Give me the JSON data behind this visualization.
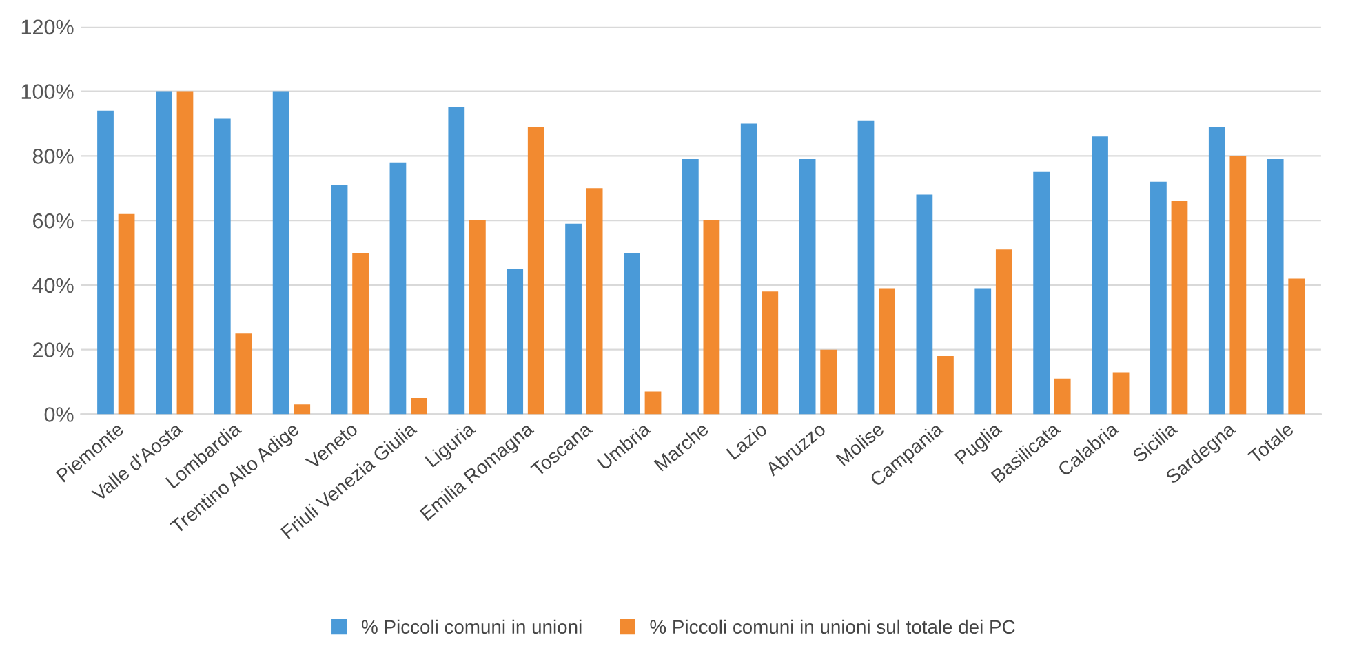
{
  "chart_data": {
    "type": "bar",
    "categories": [
      "Piemonte",
      "Valle d'Aosta",
      "Lombardia",
      "Trentino Alto Adige",
      "Veneto",
      "Friuli Venezia Giulia",
      "Liguria",
      "Emilia Romagna",
      "Toscana",
      "Umbria",
      "Marche",
      "Lazio",
      "Abruzzo",
      "Molise",
      "Campania",
      "Puglia",
      "Basilicata",
      "Calabria",
      "Sicilia",
      "Sardegna",
      "Totale"
    ],
    "series": [
      {
        "name": "% Piccoli comuni in unioni",
        "color": "#4a9ad8",
        "values": [
          94,
          100,
          91.5,
          100,
          71,
          78,
          95,
          45,
          59,
          50,
          79,
          90,
          79,
          91,
          68,
          39,
          75,
          86,
          72,
          89,
          79
        ]
      },
      {
        "name": "% Piccoli comuni in unioni sul totale dei PC",
        "color": "#f28a30",
        "values": [
          62,
          100,
          25,
          3,
          50,
          5,
          60,
          89,
          70,
          7,
          60,
          38,
          20,
          39,
          18,
          51,
          11,
          13,
          66,
          80,
          42
        ]
      }
    ],
    "ylim": [
      0,
      120
    ],
    "yticks": [
      {
        "value": 0,
        "label": "0%"
      },
      {
        "value": 20,
        "label": "20%"
      },
      {
        "value": 40,
        "label": "40%"
      },
      {
        "value": 60,
        "label": "60%"
      },
      {
        "value": 80,
        "label": "80%"
      },
      {
        "value": 100,
        "label": "100%"
      },
      {
        "value": 120,
        "label": "120%"
      }
    ],
    "grid": "y",
    "legend": "bottom"
  }
}
